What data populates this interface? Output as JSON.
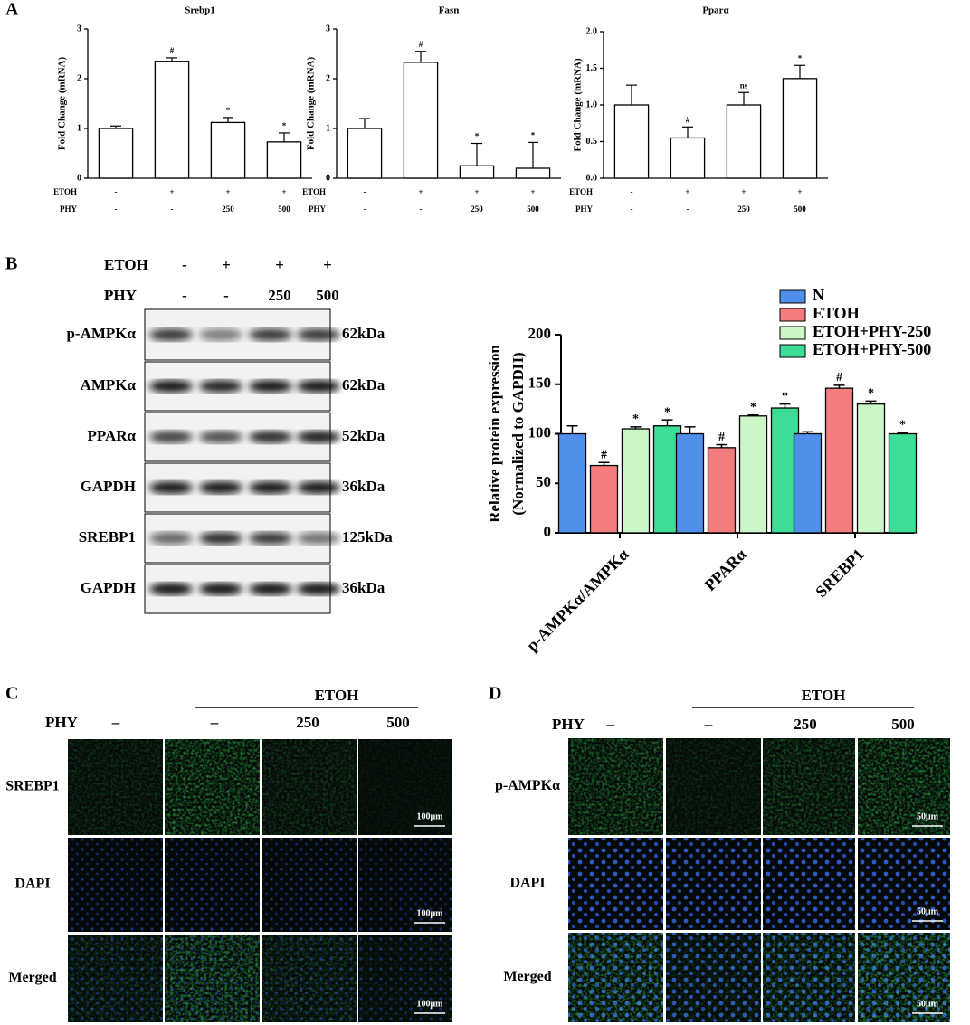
{
  "panel_labels": [
    "A",
    "B",
    "C",
    "D"
  ],
  "chart_data": [
    {
      "type": "bar",
      "title": "Srebp1",
      "ylabel": "Fold Change (mRNA)",
      "values": [
        1.0,
        2.35,
        1.12,
        0.73
      ],
      "errors": [
        0.05,
        0.07,
        0.1,
        0.18
      ],
      "markers": [
        null,
        "#",
        "*",
        "*"
      ],
      "color": "#ffffff",
      "ylim": [
        0,
        3
      ],
      "yticks": [
        0,
        1,
        2,
        3
      ],
      "treatment_rows": [
        {
          "label": "ETOH",
          "values": [
            "-",
            "+",
            "+",
            "+"
          ]
        },
        {
          "label": "PHY",
          "values": [
            "-",
            "-",
            "250",
            "500"
          ]
        }
      ]
    },
    {
      "type": "bar",
      "title": "Fasn",
      "ylabel": "Fold Change (mRNA)",
      "values": [
        1.0,
        2.33,
        0.25,
        0.2
      ],
      "errors": [
        0.2,
        0.22,
        0.45,
        0.52
      ],
      "markers": [
        null,
        "#",
        "*",
        "*"
      ],
      "color": "#ffffff",
      "ylim": [
        0,
        3
      ],
      "yticks": [
        0,
        1,
        2,
        3
      ],
      "treatment_rows": [
        {
          "label": "ETOH",
          "values": [
            "-",
            "+",
            "+",
            "+"
          ]
        },
        {
          "label": "PHY",
          "values": [
            "-",
            "-",
            "250",
            "500"
          ]
        }
      ]
    },
    {
      "type": "bar",
      "title": "Pparα",
      "ylabel": "Fold Change (mRNA)",
      "values": [
        1.0,
        0.55,
        1.0,
        1.36
      ],
      "errors": [
        0.27,
        0.15,
        0.17,
        0.18
      ],
      "markers": [
        null,
        "#",
        "ns",
        "*"
      ],
      "color": "#ffffff",
      "ylim": [
        0,
        2
      ],
      "yticks": [
        {
          "value": 0,
          "label": "0.0"
        },
        {
          "value": 0.5,
          "label": "0.5"
        },
        {
          "value": 1,
          "label": "1.0"
        },
        {
          "value": 1.5,
          "label": "1.5"
        },
        {
          "value": 2,
          "label": "2.0"
        }
      ],
      "treatment_rows": [
        {
          "label": "ETOH",
          "values": [
            "-",
            "+",
            "+",
            "+"
          ]
        },
        {
          "label": "PHY",
          "values": [
            "-",
            "-",
            "250",
            "500"
          ]
        }
      ]
    },
    {
      "type": "grouped_bar",
      "ylabel": [
        "Relative protein expression",
        "(Normalized to GAPDH)"
      ],
      "categories": [
        "p-AMPKα/AMPKα",
        "PPARα",
        "SREBP1"
      ],
      "ylim": [
        0,
        200
      ],
      "yticks": [
        0,
        50,
        100,
        150,
        200
      ],
      "legend": "top-right",
      "series": [
        {
          "name": "N",
          "color": "#4f8fea",
          "values": [
            100,
            100,
            100
          ],
          "errors": [
            8,
            7,
            2
          ],
          "markers": [
            null,
            null,
            null
          ]
        },
        {
          "name": "ETOH",
          "color": "#f47c7c",
          "values": [
            68,
            86,
            146
          ],
          "errors": [
            3,
            3,
            3
          ],
          "markers": [
            "#",
            "#",
            "#"
          ]
        },
        {
          "name": "ETOH+PHY-250",
          "color": "#ccf5c8",
          "values": [
            105,
            118,
            130
          ],
          "errors": [
            2,
            1,
            3
          ],
          "markers": [
            "*",
            "*",
            "*"
          ]
        },
        {
          "name": "ETOH+PHY-500",
          "color": "#3ddc97",
          "values": [
            108,
            126,
            100
          ],
          "errors": [
            6,
            4,
            1
          ],
          "markers": [
            "*",
            "*",
            "*"
          ]
        }
      ]
    }
  ],
  "blot": {
    "treatment_rows": [
      {
        "label": "ETOH",
        "values": [
          "-",
          "+",
          "+",
          "+"
        ]
      },
      {
        "label": "PHY",
        "values": [
          "-",
          "-",
          "250",
          "500"
        ]
      }
    ],
    "bands": [
      {
        "name": "p-AMPKα",
        "size": "62kDa"
      },
      {
        "name": "AMPKα",
        "size": "62kDa"
      },
      {
        "name": "PPARα",
        "size": "52kDa"
      },
      {
        "name": "GAPDH",
        "size": "36kDa"
      },
      {
        "name": "SREBP1",
        "size": "125kDa"
      },
      {
        "name": "GAPDH",
        "size": "36kDa"
      }
    ]
  },
  "if_c": {
    "group_label": "ETOH",
    "phy_label": "PHY",
    "phy_values": [
      "–",
      "–",
      "250",
      "500"
    ],
    "rows": [
      "SREBP1",
      "DAPI",
      "Merged"
    ],
    "scale_bar": "100μm"
  },
  "if_d": {
    "group_label": "ETOH",
    "phy_label": "PHY",
    "phy_values": [
      "–",
      "–",
      "250",
      "500"
    ],
    "rows": [
      "p-AMPKα",
      "DAPI",
      "Merged"
    ],
    "scale_bar": "50μm"
  }
}
